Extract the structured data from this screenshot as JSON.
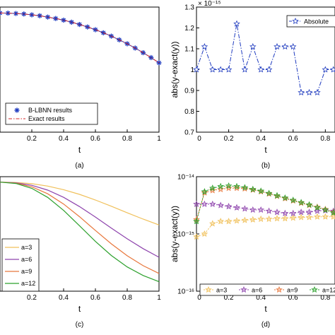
{
  "colors": {
    "blue": "#1f3bbf",
    "red": "#d62728",
    "a3": "#f0c05a",
    "a6": "#8e44ad",
    "a9": "#e8773c",
    "a12": "#2ca02c"
  },
  "chart_data": [
    {
      "id": "a",
      "type": "line",
      "caption": "(a)",
      "xlabel": "t",
      "ylabel": "",
      "xlim": [
        0,
        1
      ],
      "ylim": [
        0,
        1.05
      ],
      "xticks": [
        "0.2",
        "0.4",
        "0.6",
        "0.8",
        "1"
      ],
      "series": [
        {
          "name": "B-LBNN results",
          "marker": "asterisk",
          "color": "#1f3bbf",
          "x": [
            0,
            0.05,
            0.1,
            0.15,
            0.2,
            0.25,
            0.3,
            0.35,
            0.4,
            0.45,
            0.5,
            0.55,
            0.6,
            0.65,
            0.7,
            0.75,
            0.8,
            0.85,
            0.9,
            0.95,
            1
          ],
          "y": [
            1.0,
            0.999,
            0.996,
            0.992,
            0.985,
            0.977,
            0.966,
            0.954,
            0.94,
            0.923,
            0.904,
            0.883,
            0.86,
            0.834,
            0.806,
            0.775,
            0.742,
            0.706,
            0.667,
            0.626,
            0.582
          ]
        },
        {
          "name": "Exact results",
          "style": "dashdot",
          "color": "#d62728",
          "x": [
            0,
            0.05,
            0.1,
            0.15,
            0.2,
            0.25,
            0.3,
            0.35,
            0.4,
            0.45,
            0.5,
            0.55,
            0.6,
            0.65,
            0.7,
            0.75,
            0.8,
            0.85,
            0.9,
            0.95,
            1
          ],
          "y": [
            1.0,
            0.999,
            0.996,
            0.992,
            0.985,
            0.977,
            0.966,
            0.954,
            0.94,
            0.923,
            0.904,
            0.883,
            0.86,
            0.834,
            0.806,
            0.775,
            0.742,
            0.706,
            0.667,
            0.626,
            0.582
          ]
        }
      ]
    },
    {
      "id": "b",
      "type": "line",
      "caption": "(b)",
      "xlabel": "t",
      "ylabel": "abs(y-exact(y))",
      "exponent": "× 10⁻¹⁵",
      "xlim": [
        0,
        1
      ],
      "ylim": [
        0.7,
        1.3
      ],
      "yticks": [
        "0.7",
        "0.8",
        "0.9",
        "1",
        "1.1",
        "1.2",
        "1.3"
      ],
      "xticks": [
        "0",
        "0.2",
        "0.4",
        "0.6",
        "0.8"
      ],
      "series": [
        {
          "name": "Absolute",
          "marker": "star",
          "style": "dashdot",
          "color": "#1f3bbf",
          "x": [
            0,
            0.05,
            0.1,
            0.15,
            0.2,
            0.25,
            0.3,
            0.35,
            0.4,
            0.45,
            0.5,
            0.55,
            0.6,
            0.65,
            0.7,
            0.75,
            0.8,
            0.85,
            0.9
          ],
          "y": [
            1.0,
            1.11,
            1.0,
            1.0,
            1.0,
            1.22,
            1.0,
            1.11,
            1.0,
            1.0,
            1.11,
            1.11,
            1.11,
            0.89,
            0.89,
            0.89,
            1.0,
            1.0,
            1.0
          ]
        }
      ]
    },
    {
      "id": "c",
      "type": "line",
      "caption": "(c)",
      "xlabel": "t",
      "ylabel": "",
      "xlim": [
        0,
        1
      ],
      "ylim": [
        0,
        1.05
      ],
      "xticks": [
        "0.2",
        "0.4",
        "0.6",
        "0.8",
        "1"
      ],
      "series": [
        {
          "name": "a=3",
          "color": "#f0c05a",
          "x": [
            0,
            0.1,
            0.2,
            0.3,
            0.4,
            0.5,
            0.6,
            0.7,
            0.8,
            0.9,
            1
          ],
          "y": [
            1.0,
            0.997,
            0.986,
            0.964,
            0.931,
            0.888,
            0.836,
            0.779,
            0.719,
            0.661,
            0.607
          ]
        },
        {
          "name": "a=6",
          "color": "#8e44ad",
          "x": [
            0,
            0.1,
            0.2,
            0.3,
            0.4,
            0.5,
            0.6,
            0.7,
            0.8,
            0.9,
            1
          ],
          "y": [
            1.0,
            0.994,
            0.971,
            0.927,
            0.861,
            0.776,
            0.68,
            0.579,
            0.48,
            0.39,
            0.311
          ]
        },
        {
          "name": "a=9",
          "color": "#e8773c",
          "x": [
            0,
            0.1,
            0.2,
            0.3,
            0.4,
            0.5,
            0.6,
            0.7,
            0.8,
            0.9,
            1
          ],
          "y": [
            1.0,
            0.991,
            0.957,
            0.893,
            0.799,
            0.683,
            0.557,
            0.434,
            0.325,
            0.234,
            0.163
          ]
        },
        {
          "name": "a=12",
          "color": "#2ca02c",
          "x": [
            0,
            0.1,
            0.2,
            0.3,
            0.4,
            0.5,
            0.6,
            0.7,
            0.8,
            0.9,
            1
          ],
          "y": [
            1.0,
            0.988,
            0.943,
            0.86,
            0.741,
            0.6,
            0.456,
            0.327,
            0.222,
            0.144,
            0.087
          ]
        }
      ]
    },
    {
      "id": "d",
      "type": "line",
      "caption": "(d)",
      "yscale": "log",
      "xlabel": "t",
      "ylabel": "abs(y-exact(y))",
      "xlim": [
        0,
        1
      ],
      "ylim": [
        -16,
        -14
      ],
      "yticks": [
        "10⁻¹⁴",
        "10⁻¹⁵",
        "10⁻¹⁶"
      ],
      "xticks": [
        "0",
        "0.2",
        "0.4",
        "0.6",
        "0.8"
      ],
      "series": [
        {
          "name": "a=3",
          "marker": "star",
          "color": "#f0c05a",
          "x": [
            0,
            0.05,
            0.1,
            0.15,
            0.2,
            0.25,
            0.3,
            0.35,
            0.4,
            0.45,
            0.5,
            0.55,
            0.6,
            0.65,
            0.7,
            0.75,
            0.8,
            0.85,
            0.9
          ],
          "y": [
            -15.05,
            -15.0,
            -14.82,
            -14.78,
            -14.78,
            -14.77,
            -14.76,
            -14.75,
            -14.74,
            -14.74,
            -14.73,
            -14.73,
            -14.72,
            -14.71,
            -14.71,
            -14.7,
            -14.7,
            -14.7,
            -14.75
          ]
        },
        {
          "name": "a=6",
          "marker": "star",
          "color": "#8e44ad",
          "x": [
            0,
            0.05,
            0.1,
            0.15,
            0.2,
            0.25,
            0.3,
            0.35,
            0.4,
            0.45,
            0.5,
            0.55,
            0.6,
            0.65,
            0.7,
            0.75,
            0.8,
            0.85,
            0.9
          ],
          "y": [
            -14.48,
            -14.48,
            -14.48,
            -14.5,
            -14.52,
            -14.54,
            -14.56,
            -14.58,
            -14.58,
            -14.6,
            -14.62,
            -14.64,
            -14.64,
            -14.62,
            -14.62,
            -14.6,
            -14.59,
            -14.6,
            -14.68
          ]
        },
        {
          "name": "a=9",
          "marker": "star",
          "color": "#e8773c",
          "x": [
            0,
            0.05,
            0.1,
            0.15,
            0.2,
            0.25,
            0.3,
            0.35,
            0.4,
            0.45,
            0.5,
            0.55,
            0.6,
            0.65,
            0.7,
            0.75,
            0.8,
            0.85,
            0.9
          ],
          "y": [
            -14.75,
            -14.28,
            -14.24,
            -14.22,
            -14.2,
            -14.2,
            -14.21,
            -14.23,
            -14.26,
            -14.3,
            -14.34,
            -14.38,
            -14.42,
            -14.46,
            -14.5,
            -14.53,
            -14.57,
            -14.62,
            -14.7
          ]
        },
        {
          "name": "a=12",
          "marker": "star",
          "color": "#2ca02c",
          "x": [
            0,
            0.05,
            0.1,
            0.15,
            0.2,
            0.25,
            0.3,
            0.35,
            0.4,
            0.45,
            0.5,
            0.55,
            0.6,
            0.65,
            0.7,
            0.75,
            0.8,
            0.85,
            0.9
          ],
          "y": [
            -14.78,
            -14.26,
            -14.2,
            -14.17,
            -14.16,
            -14.17,
            -14.19,
            -14.22,
            -14.25,
            -14.29,
            -14.33,
            -14.37,
            -14.41,
            -14.45,
            -14.49,
            -14.54,
            -14.58,
            -14.63,
            -14.75
          ]
        }
      ]
    }
  ]
}
